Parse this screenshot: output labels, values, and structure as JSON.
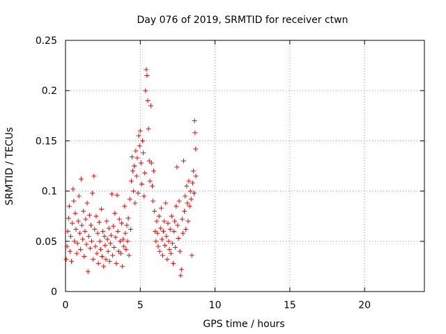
{
  "chart_data": {
    "type": "scatter",
    "title": "Day 076 of 2019, SRMTID for receiver ctwn",
    "xlabel": "GPS time / hours",
    "ylabel": "SRMTID / TECUs",
    "xlim": [
      0,
      24
    ],
    "ylim": [
      0,
      0.25
    ],
    "grid": true,
    "x_ticks": [
      0,
      5,
      10,
      15,
      20
    ],
    "x_tick_labels": [
      "0",
      "5",
      "10",
      "15",
      "20"
    ],
    "y_ticks": [
      0,
      0.05,
      0.1,
      0.15,
      0.2,
      0.25
    ],
    "y_tick_labels": [
      "0",
      "0.05",
      "0.1",
      "0.15",
      "0.2",
      "0.25"
    ],
    "marker": "+",
    "series": [
      {
        "name": "SRMTID",
        "color": "#ff0000",
        "points": [
          [
            0.05,
            0.032
          ],
          [
            0.1,
            0.045
          ],
          [
            0.15,
            0.06
          ],
          [
            0.2,
            0.073
          ],
          [
            0.25,
            0.085
          ],
          [
            0.3,
            0.04
          ],
          [
            0.35,
            0.055
          ],
          [
            0.4,
            0.03
          ],
          [
            0.45,
            0.068
          ],
          [
            0.5,
            0.102
          ],
          [
            0.55,
            0.09
          ],
          [
            0.6,
            0.05
          ],
          [
            0.65,
            0.078
          ],
          [
            0.7,
            0.062
          ],
          [
            0.75,
            0.038
          ],
          [
            0.8,
            0.048
          ],
          [
            0.85,
            0.07
          ],
          [
            0.9,
            0.095
          ],
          [
            0.95,
            0.058
          ],
          [
            1.0,
            0.042
          ],
          [
            1.05,
            0.112
          ],
          [
            1.1,
            0.066
          ],
          [
            1.15,
            0.052
          ],
          [
            1.2,
            0.08
          ],
          [
            1.25,
            0.035
          ],
          [
            1.3,
            0.06
          ],
          [
            1.35,
            0.072
          ],
          [
            1.4,
            0.047
          ],
          [
            1.45,
            0.088
          ],
          [
            1.5,
            0.02
          ],
          [
            1.55,
            0.055
          ],
          [
            1.6,
            0.076
          ],
          [
            1.65,
            0.043
          ],
          [
            1.7,
            0.066
          ],
          [
            1.75,
            0.05
          ],
          [
            1.8,
            0.098
          ],
          [
            1.85,
            0.032
          ],
          [
            1.9,
            0.115
          ],
          [
            1.95,
            0.062
          ],
          [
            2.0,
            0.045
          ],
          [
            2.05,
            0.075
          ],
          [
            2.1,
            0.038
          ],
          [
            2.15,
            0.058
          ],
          [
            2.2,
            0.028
          ],
          [
            2.25,
            0.069
          ],
          [
            2.3,
            0.05
          ],
          [
            2.35,
            0.042
          ],
          [
            2.4,
            0.082
          ],
          [
            2.45,
            0.035
          ],
          [
            2.5,
            0.06
          ],
          [
            2.55,
            0.025
          ],
          [
            2.6,
            0.055
          ],
          [
            2.65,
            0.046
          ],
          [
            2.7,
            0.032
          ],
          [
            2.75,
            0.07
          ],
          [
            2.8,
            0.052
          ],
          [
            2.85,
            0.04
          ],
          [
            2.9,
            0.063
          ],
          [
            2.95,
            0.03
          ],
          [
            3.0,
            0.048
          ],
          [
            3.05,
            0.056
          ],
          [
            3.1,
            0.097
          ],
          [
            3.15,
            0.036
          ],
          [
            3.2,
            0.065
          ],
          [
            3.25,
            0.044
          ],
          [
            3.3,
            0.078
          ],
          [
            3.35,
            0.054
          ],
          [
            3.4,
            0.028
          ],
          [
            3.45,
            0.096
          ],
          [
            3.5,
            0.06
          ],
          [
            3.55,
            0.04
          ],
          [
            3.6,
            0.072
          ],
          [
            3.65,
            0.05
          ],
          [
            3.7,
            0.038
          ],
          [
            3.75,
            0.068
          ],
          [
            3.8,
            0.025
          ],
          [
            3.85,
            0.052
          ],
          [
            3.9,
            0.045
          ],
          [
            3.95,
            0.085
          ],
          [
            4.0,
            0.058
          ],
          [
            4.05,
            0.042
          ],
          [
            4.1,
            0.066
          ],
          [
            4.15,
            0.05
          ],
          [
            4.2,
            0.073
          ],
          [
            4.25,
            0.036
          ],
          [
            4.3,
            0.092
          ],
          [
            4.35,
            0.062
          ],
          [
            4.4,
            0.11
          ],
          [
            4.45,
            0.134
          ],
          [
            4.5,
            0.12
          ],
          [
            4.55,
            0.1
          ],
          [
            4.6,
            0.125
          ],
          [
            4.65,
            0.088
          ],
          [
            4.7,
            0.14
          ],
          [
            4.75,
            0.115
          ],
          [
            4.8,
            0.133
          ],
          [
            4.85,
            0.098
          ],
          [
            4.9,
            0.155
          ],
          [
            4.95,
            0.145
          ],
          [
            5.0,
            0.16
          ],
          [
            5.05,
            0.128
          ],
          [
            5.1,
            0.107
          ],
          [
            5.15,
            0.15
          ],
          [
            5.2,
            0.138
          ],
          [
            5.25,
            0.095
          ],
          [
            5.3,
            0.118
          ],
          [
            5.35,
            0.2
          ],
          [
            5.4,
            0.221
          ],
          [
            5.45,
            0.215
          ],
          [
            5.5,
            0.19
          ],
          [
            5.55,
            0.162
          ],
          [
            5.6,
            0.13
          ],
          [
            5.65,
            0.11
          ],
          [
            5.7,
            0.185
          ],
          [
            5.75,
            0.128
          ],
          [
            5.8,
            0.105
          ],
          [
            5.85,
            0.09
          ],
          [
            5.9,
            0.12
          ],
          [
            5.95,
            0.08
          ],
          [
            6.0,
            0.06
          ],
          [
            6.05,
            0.05
          ],
          [
            6.1,
            0.07
          ],
          [
            6.15,
            0.058
          ],
          [
            6.2,
            0.045
          ],
          [
            6.25,
            0.075
          ],
          [
            6.3,
            0.04
          ],
          [
            6.35,
            0.063
          ],
          [
            6.4,
            0.083
          ],
          [
            6.45,
            0.052
          ],
          [
            6.5,
            0.036
          ],
          [
            6.55,
            0.06
          ],
          [
            6.6,
            0.07
          ],
          [
            6.65,
            0.046
          ],
          [
            6.7,
            0.088
          ],
          [
            6.75,
            0.055
          ],
          [
            6.8,
            0.032
          ],
          [
            6.85,
            0.068
          ],
          [
            6.9,
            0.05
          ],
          [
            6.95,
            0.042
          ],
          [
            7.0,
            0.062
          ],
          [
            7.05,
            0.038
          ],
          [
            7.1,
            0.075
          ],
          [
            7.15,
            0.048
          ],
          [
            7.2,
            0.028
          ],
          [
            7.25,
            0.06
          ],
          [
            7.3,
            0.07
          ],
          [
            7.35,
            0.044
          ],
          [
            7.4,
            0.085
          ],
          [
            7.45,
            0.124
          ],
          [
            7.5,
            0.066
          ],
          [
            7.55,
            0.053
          ],
          [
            7.6,
            0.09
          ],
          [
            7.65,
            0.04
          ],
          [
            7.7,
            0.016
          ],
          [
            7.75,
            0.022
          ],
          [
            7.8,
            0.072
          ],
          [
            7.85,
            0.058
          ],
          [
            7.9,
            0.13
          ],
          [
            7.95,
            0.08
          ],
          [
            8.0,
            0.095
          ],
          [
            8.05,
            0.062
          ],
          [
            8.1,
            0.105
          ],
          [
            8.15,
            0.088
          ],
          [
            8.2,
            0.07
          ],
          [
            8.25,
            0.11
          ],
          [
            8.3,
            0.085
          ],
          [
            8.35,
            0.1
          ],
          [
            8.4,
            0.092
          ],
          [
            8.45,
            0.036
          ],
          [
            8.5,
            0.108
          ],
          [
            8.55,
            0.12
          ],
          [
            8.6,
            0.098
          ],
          [
            8.63,
            0.17
          ],
          [
            8.66,
            0.158
          ],
          [
            8.7,
            0.142
          ],
          [
            8.72,
            0.115
          ]
        ]
      }
    ]
  }
}
